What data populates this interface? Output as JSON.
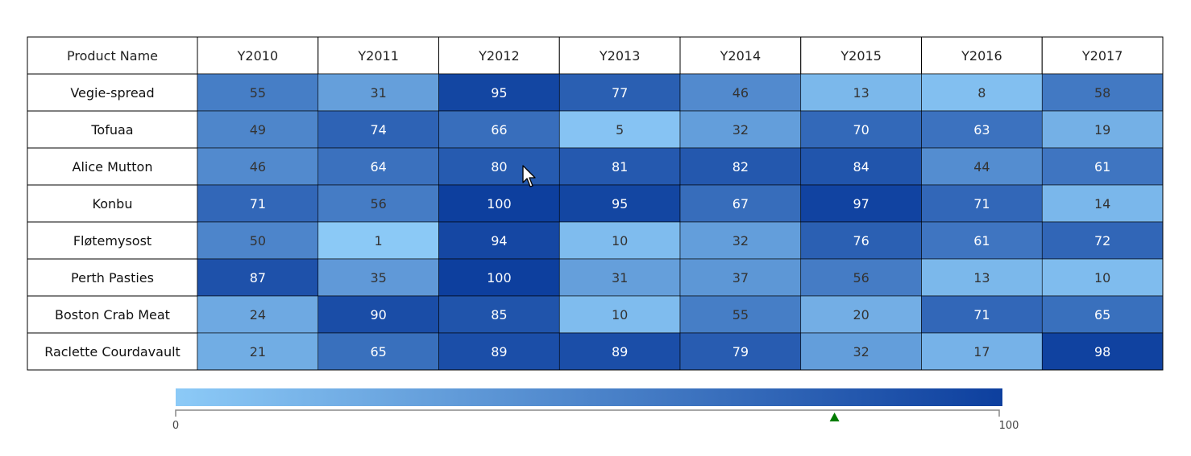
{
  "chart_data": {
    "type": "heatmap",
    "corner_header": "Product Name",
    "columns": [
      "Y2010",
      "Y2011",
      "Y2012",
      "Y2013",
      "Y2014",
      "Y2015",
      "Y2016",
      "Y2017"
    ],
    "rows": [
      "Vegie-spread",
      "Tofuaa",
      "Alice Mutton",
      "Konbu",
      "Fløtemysost",
      "Perth Pasties",
      "Boston Crab Meat",
      "Raclette Courdavault"
    ],
    "values": [
      [
        55,
        31,
        95,
        77,
        46,
        13,
        8,
        58
      ],
      [
        49,
        74,
        66,
        5,
        32,
        70,
        63,
        19
      ],
      [
        46,
        64,
        80,
        81,
        82,
        84,
        44,
        61
      ],
      [
        71,
        56,
        100,
        95,
        67,
        97,
        71,
        14
      ],
      [
        50,
        1,
        94,
        10,
        32,
        76,
        61,
        72
      ],
      [
        87,
        35,
        100,
        31,
        37,
        56,
        13,
        10
      ],
      [
        24,
        90,
        85,
        10,
        55,
        20,
        71,
        65
      ],
      [
        21,
        65,
        89,
        89,
        79,
        32,
        17,
        98
      ]
    ],
    "color_range": {
      "min": 0,
      "max": 100,
      "min_color": "#8ccaf7",
      "max_color": "#0d3f9e"
    },
    "legend": {
      "placement": "bottom",
      "min_label": "0",
      "max_label": "100",
      "pointer_value": 80,
      "pointer_color": "#007b00"
    }
  }
}
